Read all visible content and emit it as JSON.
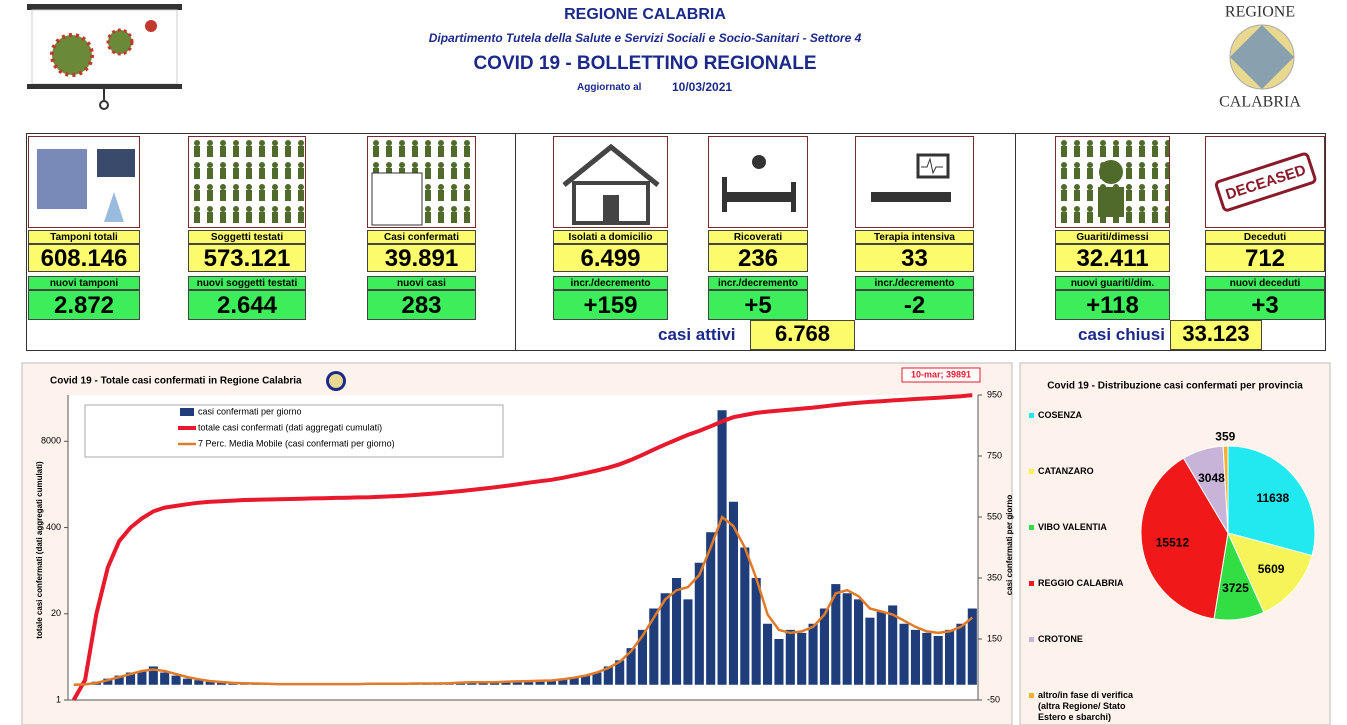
{
  "header": {
    "title": "REGIONE CALABRIA",
    "department": "Dipartimento Tutela della Salute e Servizi Sociali e Socio-Sanitari - Settore 4",
    "bulletin": "COVID 19 - BOLLETTINO REGIONALE",
    "updated_label": "Aggiornato al",
    "updated_date": "10/03/2021",
    "logo_top": "REGIONE",
    "logo_bottom": "CALABRIA"
  },
  "cards": [
    {
      "label": "Tamponi totali",
      "value": "608.146",
      "sublabel": "nuovi tamponi",
      "subvalue": "2.872"
    },
    {
      "label": "Soggetti testati",
      "value": "573.121",
      "sublabel": "nuovi soggetti testati",
      "subvalue": "2.644"
    },
    {
      "label": "Casi confermati",
      "value": "39.891",
      "sublabel": "nuovi casi",
      "subvalue": "283"
    },
    {
      "label": "Isolati a domicilio",
      "value": "6.499",
      "sublabel": "incr./decremento",
      "subvalue": "+159"
    },
    {
      "label": "Ricoverati",
      "value": "236",
      "sublabel": "incr./decremento",
      "subvalue": "+5"
    },
    {
      "label": "Terapia intensiva",
      "value": "33",
      "sublabel": "incr./decremento",
      "subvalue": "-2"
    },
    {
      "label": "Guariti/dimessi",
      "value": "32.411",
      "sublabel": "nuovi guariti/dim.",
      "subvalue": "+118"
    },
    {
      "label": "Deceduti",
      "value": "712",
      "sublabel": "nuovi deceduti",
      "subvalue": "+3"
    }
  ],
  "icons": {
    "deceased_stamp": "DECEASED"
  },
  "totals": {
    "active_label": "casi attivi",
    "active_value": "6.768",
    "closed_label": "casi chiusi",
    "closed_value": "33.123"
  },
  "chart_data": [
    {
      "type": "bar",
      "title": "Covid 19 - Totale casi confermati in Regione Calabria",
      "ylabel": "totale casi confermati (dati aggregati cumulati)",
      "y2label": "casi confermati per giorno",
      "annotation": "10-mar; 39891",
      "categories": [
        null,
        null,
        null,
        null,
        null,
        null,
        null,
        null,
        null,
        null,
        null,
        null,
        null,
        null,
        null,
        null,
        null,
        null,
        null,
        null,
        null,
        null,
        null,
        null,
        null,
        null,
        null,
        null,
        null,
        null,
        null,
        null,
        null,
        null,
        null,
        null,
        null,
        null,
        null,
        null,
        null,
        null,
        null,
        null,
        null,
        null,
        null,
        null,
        null,
        null,
        null,
        null,
        null,
        null,
        null,
        null,
        null,
        null,
        null,
        null,
        null,
        null,
        null,
        null,
        null,
        null,
        null,
        null,
        null,
        null,
        null,
        null,
        null,
        null,
        null,
        null,
        null,
        null,
        null,
        null
      ],
      "yscale": "log",
      "ylim": [
        1,
        40000
      ],
      "yticks": [
        1,
        20,
        400,
        8000
      ],
      "y2lim": [
        -50,
        950
      ],
      "y2ticks": [
        -50,
        150,
        350,
        550,
        750,
        950
      ],
      "legend": "upper left",
      "series": [
        {
          "name": "casi confermati per giorno",
          "type": "bar",
          "axis": "y2",
          "color": "#1f3d7a",
          "values": [
            0,
            2,
            10,
            20,
            30,
            40,
            45,
            60,
            40,
            30,
            20,
            15,
            10,
            8,
            5,
            5,
            3,
            3,
            2,
            2,
            2,
            1,
            2,
            3,
            1,
            2,
            3,
            5,
            2,
            3,
            4,
            5,
            3,
            6,
            8,
            10,
            5,
            8,
            10,
            12,
            15,
            10,
            12,
            20,
            25,
            30,
            40,
            60,
            80,
            120,
            180,
            250,
            300,
            350,
            280,
            400,
            500,
            900,
            600,
            450,
            350,
            200,
            150,
            180,
            170,
            200,
            250,
            330,
            300,
            280,
            220,
            240,
            260,
            200,
            180,
            170,
            160,
            180,
            200,
            250
          ]
        },
        {
          "name": "totale casi confermati (dati aggregati cumulati)",
          "type": "line",
          "color": "#e8192c",
          "values": [
            1,
            2,
            20,
            100,
            250,
            400,
            550,
            700,
            800,
            850,
            900,
            950,
            980,
            1000,
            1020,
            1040,
            1050,
            1060,
            1070,
            1080,
            1090,
            1100,
            1110,
            1120,
            1130,
            1140,
            1150,
            1170,
            1190,
            1210,
            1240,
            1280,
            1320,
            1370,
            1420,
            1480,
            1550,
            1620,
            1700,
            1790,
            1900,
            2000,
            2100,
            2250,
            2450,
            2650,
            2900,
            3200,
            3600,
            4200,
            5000,
            6000,
            7200,
            8500,
            10000,
            11500,
            13500,
            16000,
            18500,
            20000,
            21500,
            22500,
            23300,
            24100,
            24900,
            25800,
            27000,
            28300,
            29500,
            30600,
            31500,
            32300,
            33200,
            34000,
            34800,
            35600,
            36400,
            37300,
            38300,
            39891
          ]
        },
        {
          "name": "7 Perc. Media Mobile (casi confermati per giorno)",
          "type": "line",
          "axis": "y2",
          "color": "#e07b2a",
          "values": [
            0,
            1,
            6,
            15,
            25,
            35,
            45,
            50,
            45,
            35,
            25,
            18,
            12,
            9,
            6,
            5,
            4,
            3,
            2,
            2,
            2,
            2,
            2,
            2,
            2,
            2,
            3,
            3,
            3,
            3,
            4,
            4,
            4,
            5,
            7,
            8,
            8,
            8,
            10,
            11,
            12,
            13,
            14,
            18,
            23,
            30,
            40,
            55,
            75,
            110,
            160,
            220,
            280,
            310,
            320,
            360,
            450,
            550,
            520,
            450,
            350,
            230,
            180,
            170,
            175,
            190,
            230,
            300,
            310,
            290,
            250,
            240,
            230,
            210,
            190,
            175,
            170,
            175,
            190,
            220
          ]
        }
      ]
    },
    {
      "type": "pie",
      "title": "Covid 19 - Distribuzione casi confermati per provincia",
      "categories": [
        "COSENZA",
        "CATANZARO",
        "VIBO VALENTIA",
        "REGGIO CALABRIA",
        "CROTONE",
        "altro/in fase di verifica (altra Regione/ Stato Estero e sbarchi)"
      ],
      "values": [
        11638,
        5609,
        3725,
        15512,
        3048,
        359
      ],
      "colors": [
        "#22e8f0",
        "#f5f55a",
        "#33dd44",
        "#f01818",
        "#c8b4d8",
        "#f0b030"
      ]
    }
  ]
}
